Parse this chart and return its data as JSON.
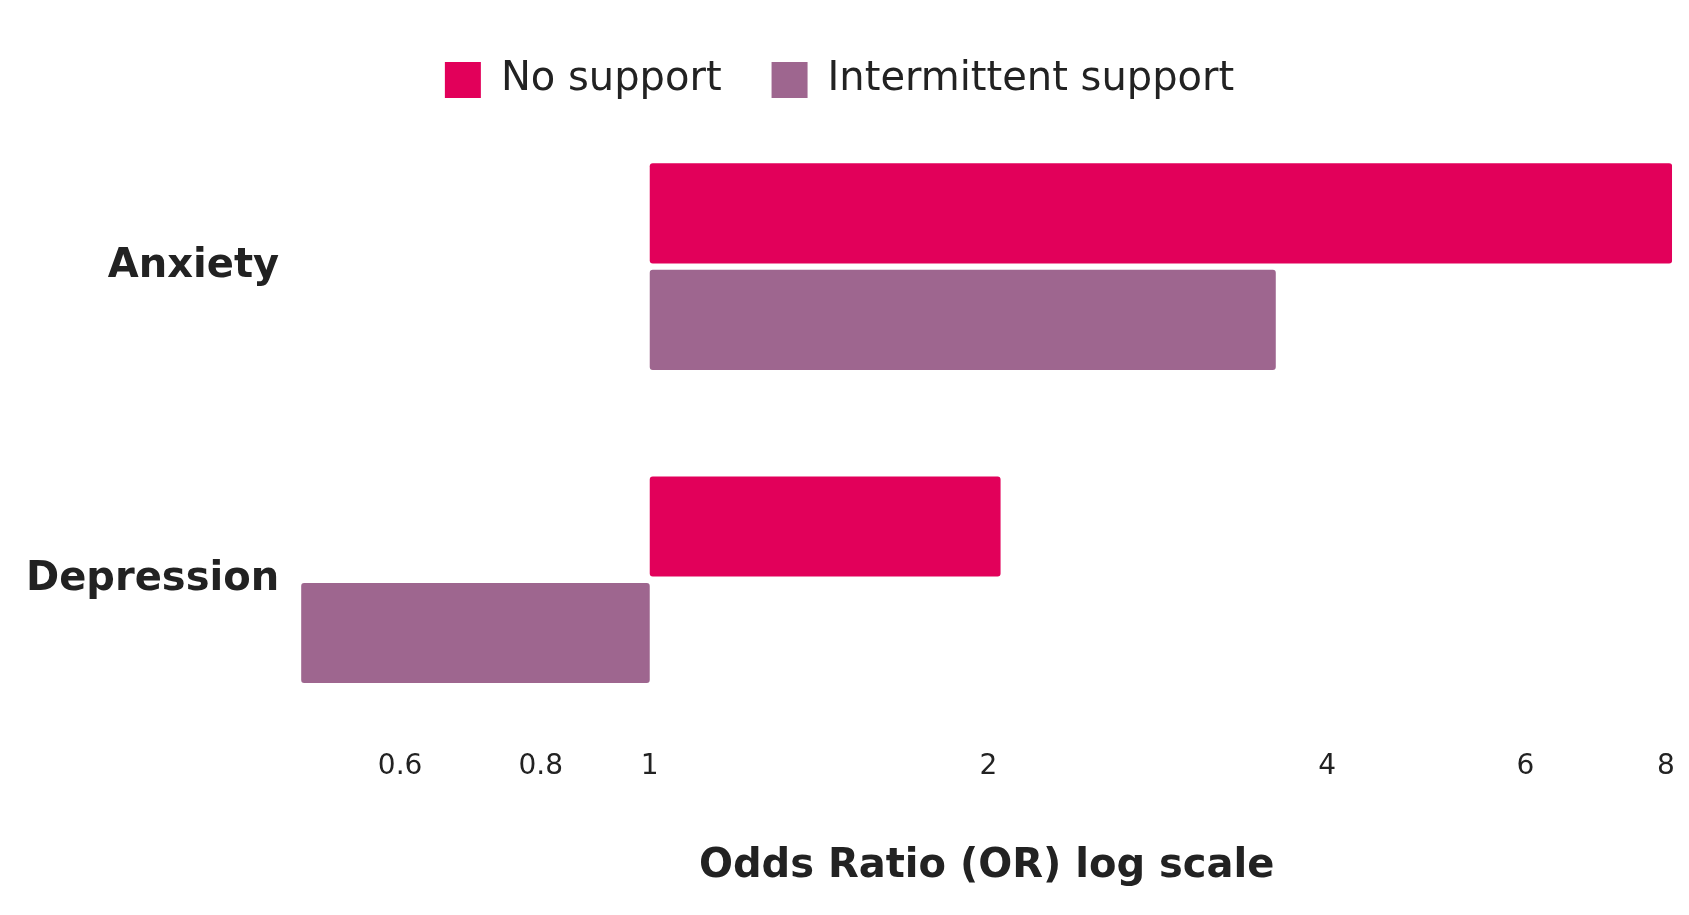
{
  "chart_data": {
    "type": "bar",
    "orientation": "horizontal",
    "log": "x",
    "categories": [
      "Anxiety",
      "Depression"
    ],
    "series": [
      {
        "name": "No support",
        "color": "#e2005a",
        "base": [
          1,
          1
        ],
        "values": [
          7.1,
          1.05
        ]
      },
      {
        "name": "Intermittent support",
        "color": "#9e668f",
        "base": [
          1,
          1
        ],
        "values": [
          2.6,
          -0.51
        ]
      }
    ],
    "xlabel": "Odds Ratio (OR) log scale",
    "xlim": [
      0.49,
      8.1
    ],
    "xticks": [
      0.6,
      0.8,
      1,
      2,
      4,
      6,
      8
    ],
    "grid": false,
    "legend": "top"
  }
}
